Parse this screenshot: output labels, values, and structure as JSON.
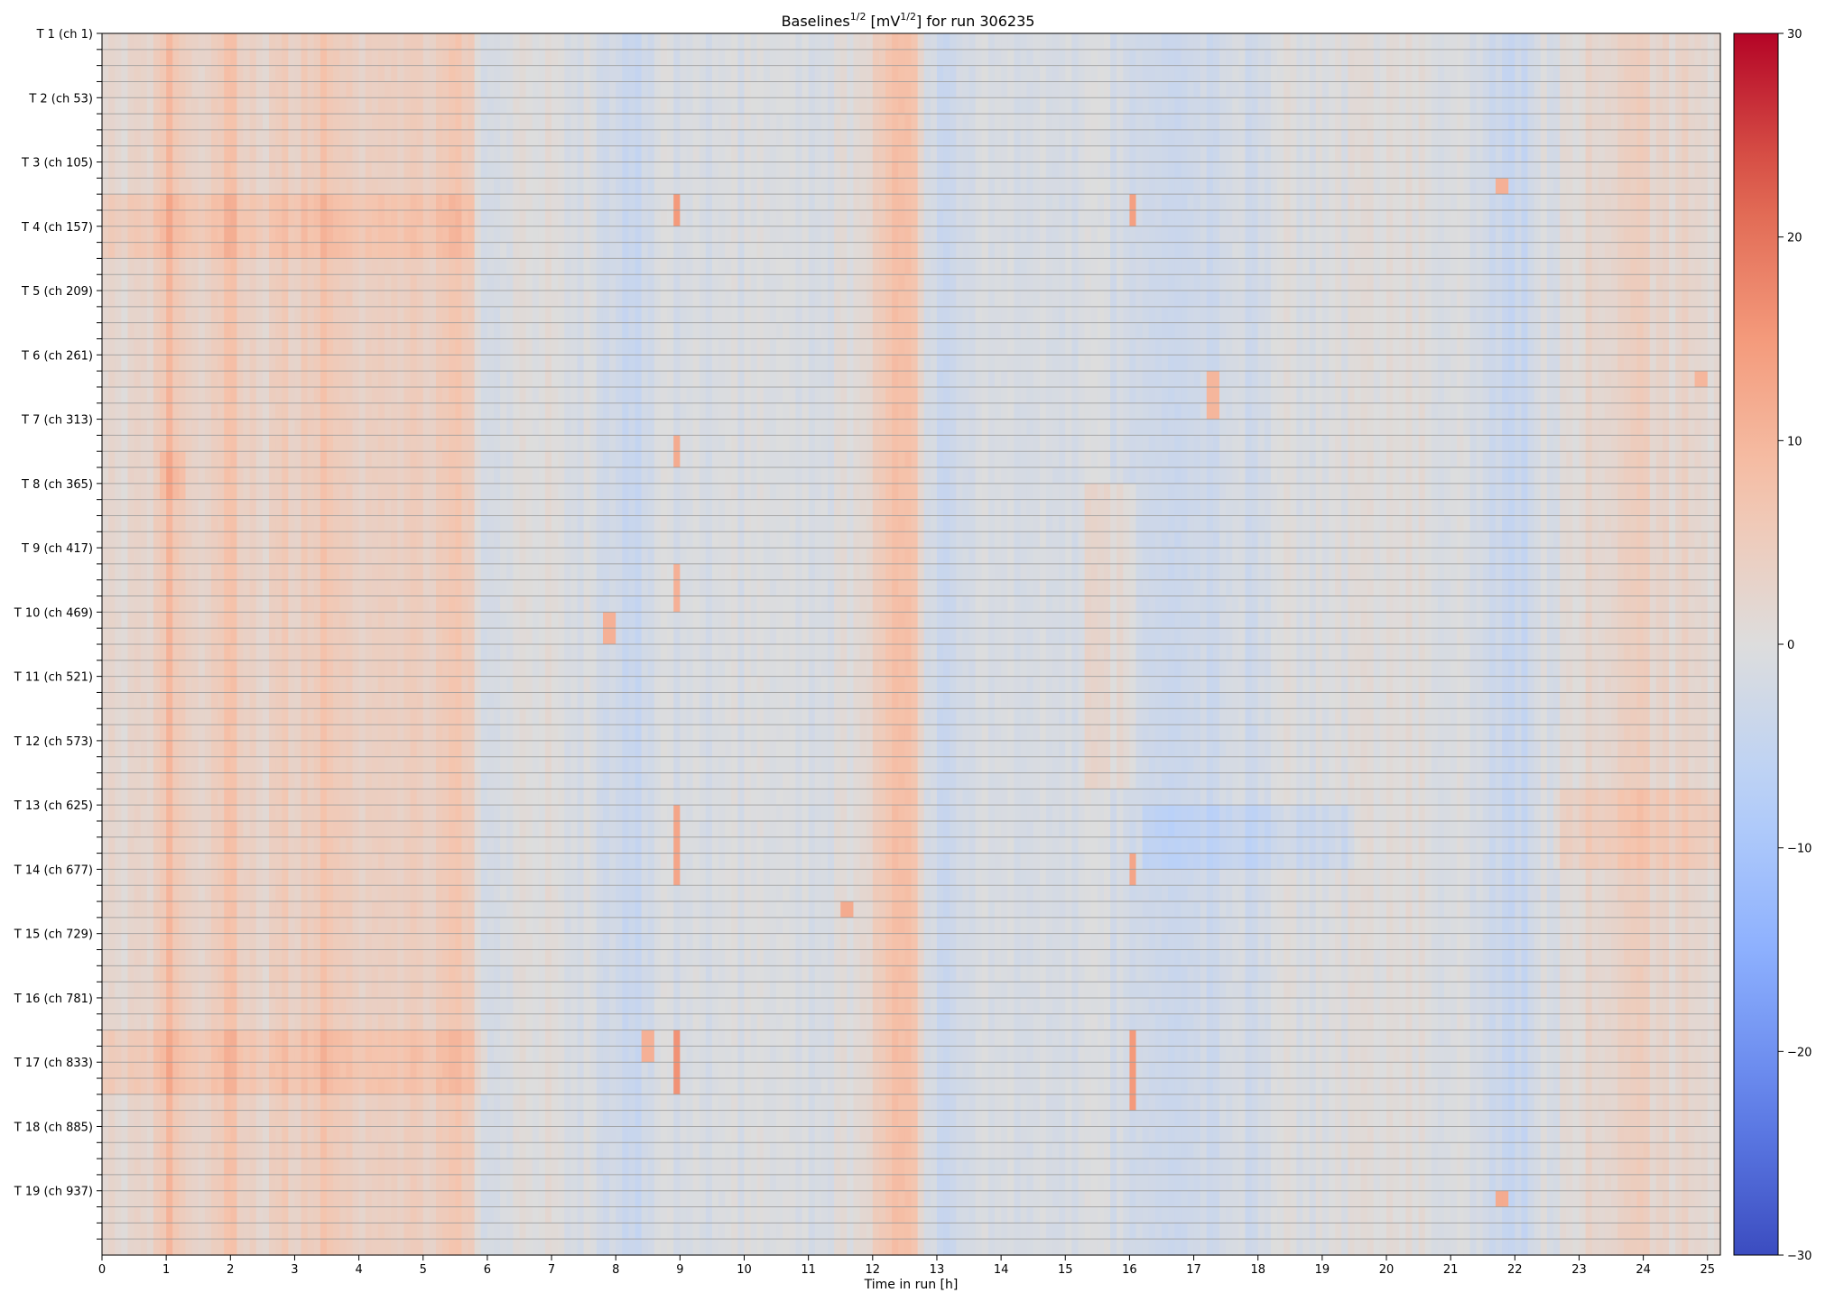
{
  "chart_data": {
    "type": "heatmap",
    "title": {
      "prefix": "Baselines",
      "prefix_sup": "1/2",
      "unit_open": " [mV",
      "unit_sup": "1/2",
      "suffix": "] for run 306235"
    },
    "xlabel": "Time in run [h]",
    "ylabel": "",
    "xlim": [
      0,
      25.2
    ],
    "x_ticks": [
      0,
      1,
      2,
      3,
      4,
      5,
      6,
      7,
      8,
      9,
      10,
      11,
      12,
      13,
      14,
      15,
      16,
      17,
      18,
      19,
      20,
      21,
      22,
      23,
      24,
      25
    ],
    "y_tick_labels": [
      "T 1 (ch 1)",
      "T 2 (ch 53)",
      "T 3 (ch 105)",
      "T 4 (ch 157)",
      "T 5 (ch 209)",
      "T 6 (ch 261)",
      "T 7 (ch 313)",
      "T 8 (ch 365)",
      "T 9 (ch 417)",
      "T 10 (ch 469)",
      "T 11 (ch 521)",
      "T 12 (ch 573)",
      "T 13 (ch 625)",
      "T 14 (ch 677)",
      "T 15 (ch 729)",
      "T 16 (ch 781)",
      "T 17 (ch 833)",
      "T 18 (ch 885)",
      "T 19 (ch 937)"
    ],
    "n_rows": 76,
    "rows_per_tower": 4,
    "colorscale": "coolwarm",
    "colorbar": {
      "min": -30,
      "max": 30,
      "ticks": [
        30,
        20,
        10,
        0,
        -10,
        -20,
        -30
      ]
    },
    "grid": "horizontal lines between rows",
    "column_profile": {
      "description": "typical baseline value (mV^1/2) vs time, shared by all channels",
      "points": [
        [
          0.0,
          3
        ],
        [
          0.3,
          1
        ],
        [
          0.6,
          2
        ],
        [
          0.9,
          4
        ],
        [
          1.05,
          9
        ],
        [
          1.2,
          6
        ],
        [
          1.5,
          3
        ],
        [
          1.8,
          5
        ],
        [
          2.0,
          8
        ],
        [
          2.2,
          4
        ],
        [
          2.5,
          2
        ],
        [
          2.8,
          6
        ],
        [
          3.0,
          4
        ],
        [
          3.3,
          6
        ],
        [
          3.6,
          7
        ],
        [
          3.9,
          4
        ],
        [
          4.2,
          3
        ],
        [
          4.5,
          4
        ],
        [
          4.8,
          5
        ],
        [
          5.1,
          4
        ],
        [
          5.4,
          6
        ],
        [
          5.7,
          6
        ],
        [
          6.0,
          -3
        ],
        [
          6.5,
          0
        ],
        [
          7.0,
          1
        ],
        [
          7.5,
          -1
        ],
        [
          8.0,
          -3
        ],
        [
          8.3,
          -4
        ],
        [
          8.6,
          -1
        ],
        [
          9.0,
          -2
        ],
        [
          9.5,
          -1
        ],
        [
          10.0,
          -1
        ],
        [
          10.4,
          0
        ],
        [
          10.8,
          -1
        ],
        [
          11.2,
          -1
        ],
        [
          11.6,
          0
        ],
        [
          12.0,
          3
        ],
        [
          12.3,
          8
        ],
        [
          12.6,
          8
        ],
        [
          12.9,
          -2
        ],
        [
          13.1,
          -5
        ],
        [
          13.4,
          -1
        ],
        [
          14.0,
          -1
        ],
        [
          14.5,
          -2
        ],
        [
          15.0,
          -1
        ],
        [
          15.5,
          -1
        ],
        [
          16.0,
          -2
        ],
        [
          16.5,
          -4
        ],
        [
          17.0,
          -4
        ],
        [
          17.5,
          -2
        ],
        [
          18.0,
          -3
        ],
        [
          18.3,
          1
        ],
        [
          18.6,
          0
        ],
        [
          19.0,
          -1
        ],
        [
          19.5,
          0
        ],
        [
          20.0,
          0
        ],
        [
          20.5,
          1
        ],
        [
          21.0,
          -1
        ],
        [
          21.5,
          -1
        ],
        [
          21.8,
          -4
        ],
        [
          22.1,
          -4
        ],
        [
          22.4,
          -1
        ],
        [
          22.8,
          0
        ],
        [
          23.0,
          2
        ],
        [
          23.5,
          3
        ],
        [
          24.0,
          4
        ],
        [
          24.4,
          2
        ],
        [
          24.8,
          3
        ],
        [
          25.2,
          1
        ]
      ]
    },
    "row_groups": [
      {
        "description": "channel group warmer than typical early in run, cooler later (T 4 rows)",
        "rows": [
          10,
          13
        ],
        "t_range": [
          0,
          5.8
        ],
        "offset": 3
      },
      {
        "description": "warmer band in T 8 (ch 365) rows before 1.2 h",
        "rows": [
          26,
          28
        ],
        "t_range": [
          0.9,
          1.3
        ],
        "offset": 3
      },
      {
        "description": "warmer group T 17 (ch 833) rows",
        "rows": [
          62,
          65
        ],
        "t_range": [
          0,
          6.0
        ],
        "offset": 3
      },
      {
        "description": "cooler group in T 13-T 14 rows between 16 and 19.5 h",
        "rows": [
          48,
          51
        ],
        "t_range": [
          16.2,
          19.5
        ],
        "offset": -3
      },
      {
        "description": "warmer group in T 13-T 14 rows after 22.6 h",
        "rows": [
          47,
          51
        ],
        "t_range": [
          22.6,
          25.2
        ],
        "offset": 3
      },
      {
        "description": "warmer group T 8-T 12 rows around 15.3-16.1 h",
        "rows": [
          28,
          46
        ],
        "t_range": [
          15.3,
          16.1
        ],
        "offset": 3
      }
    ],
    "hot_spots": [
      {
        "t": 8.95,
        "rows": [
          10,
          11
        ],
        "value": 15
      },
      {
        "t": 8.95,
        "rows": [
          62,
          65
        ],
        "value": 16
      },
      {
        "t": 8.95,
        "rows": [
          48,
          52
        ],
        "value": 13
      },
      {
        "t": 8.95,
        "rows": [
          25,
          26
        ],
        "value": 12
      },
      {
        "t": 8.95,
        "rows": [
          33,
          35
        ],
        "value": 11
      },
      {
        "t": 16.05,
        "rows": [
          10,
          11
        ],
        "value": 14
      },
      {
        "t": 16.05,
        "rows": [
          62,
          66
        ],
        "value": 15
      },
      {
        "t": 16.05,
        "rows": [
          51,
          52
        ],
        "value": 13
      },
      {
        "t": 8.5,
        "rows": [
          62,
          63
        ],
        "value": 11
      },
      {
        "t": 11.6,
        "rows": [
          54,
          54
        ],
        "value": 12
      },
      {
        "t": 7.9,
        "rows": [
          36,
          37
        ],
        "value": 11
      },
      {
        "t": 21.8,
        "rows": [
          9,
          9
        ],
        "value": 11
      },
      {
        "t": 21.8,
        "rows": [
          72,
          72
        ],
        "value": 12
      },
      {
        "t": 24.9,
        "rows": [
          21,
          21
        ],
        "value": 10
      },
      {
        "t": 17.3,
        "rows": [
          21,
          23
        ],
        "value": 10
      }
    ]
  }
}
